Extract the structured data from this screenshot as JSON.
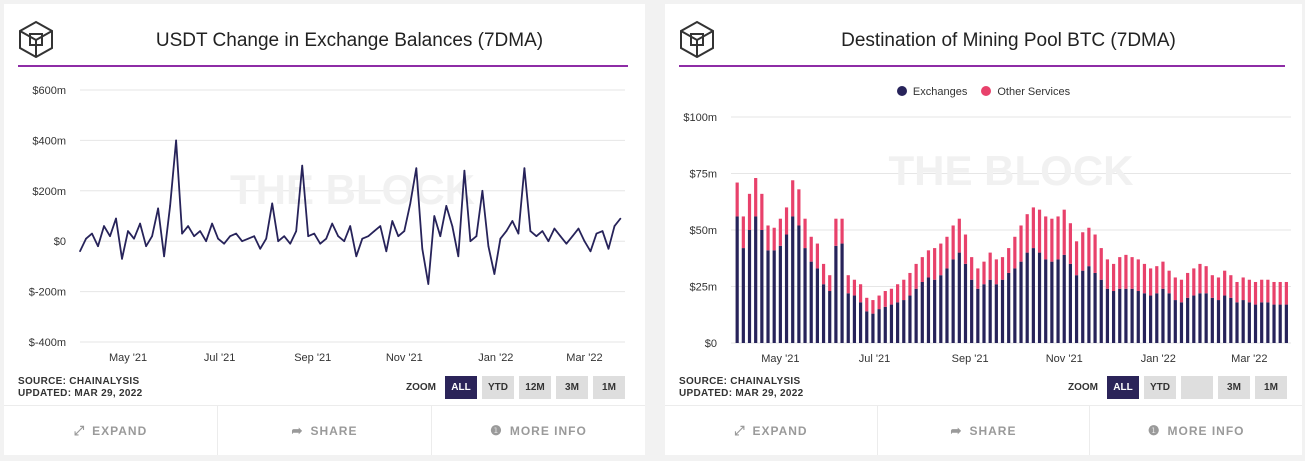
{
  "colors": {
    "accent": "#8e2ca6",
    "exchanges": "#27235a",
    "other_services": "#e8416b",
    "zoom_active": "#2b2459"
  },
  "watermark": "THE BLOCK",
  "cards": [
    {
      "title": "USDT Change in Exchange Balances (7DMA)",
      "source": "SOURCE: CHAINALYSIS",
      "updated": "UPDATED: MAR 29, 2022",
      "zoom_label": "ZOOM",
      "zoom_buttons": [
        "ALL",
        "YTD",
        "12M",
        "3M",
        "1M"
      ],
      "zoom_active": "ALL",
      "actions": [
        {
          "label": "EXPAND",
          "icon": "expand-icon"
        },
        {
          "label": "SHARE",
          "icon": "share-icon"
        },
        {
          "label": "MORE INFO",
          "icon": "info-icon"
        }
      ]
    },
    {
      "title": "Destination of Mining Pool BTC (7DMA)",
      "source": "SOURCE: CHAINALYSIS",
      "updated": "UPDATED: MAR 29, 2022",
      "zoom_label": "ZOOM",
      "zoom_buttons": [
        "ALL",
        "YTD",
        "",
        "3M",
        "1M"
      ],
      "zoom_active": "ALL",
      "actions": [
        {
          "label": "EXPAND",
          "icon": "expand-icon"
        },
        {
          "label": "SHARE",
          "icon": "share-icon"
        },
        {
          "label": "MORE INFO",
          "icon": "info-icon"
        }
      ]
    }
  ],
  "chart_data": [
    {
      "type": "line",
      "title": "USDT Change in Exchange Balances (7DMA)",
      "unit": "$m",
      "ylim": [
        -400,
        600
      ],
      "yticks": [
        600,
        400,
        200,
        0,
        -200,
        -400
      ],
      "ytick_labels": [
        "$600m",
        "$400m",
        "$200m",
        "$0",
        "$-200m",
        "$-400m"
      ],
      "xticks": [
        "2021-05-01",
        "2021-07-01",
        "2021-09-01",
        "2021-11-01",
        "2022-01-01",
        "2022-03-01"
      ],
      "xtick_labels": [
        "May '21",
        "Jul '21",
        "Sep '21",
        "Nov '21",
        "Jan '22",
        "Mar '22"
      ],
      "xlim": [
        "2021-03-30",
        "2022-03-28"
      ],
      "grid": true,
      "x": [
        "2021-03-30",
        "2021-04-03",
        "2021-04-07",
        "2021-04-11",
        "2021-04-15",
        "2021-04-19",
        "2021-04-23",
        "2021-04-27",
        "2021-05-01",
        "2021-05-05",
        "2021-05-09",
        "2021-05-13",
        "2021-05-17",
        "2021-05-21",
        "2021-05-25",
        "2021-05-29",
        "2021-06-02",
        "2021-06-06",
        "2021-06-10",
        "2021-06-14",
        "2021-06-18",
        "2021-06-22",
        "2021-06-26",
        "2021-06-30",
        "2021-07-04",
        "2021-07-08",
        "2021-07-12",
        "2021-07-16",
        "2021-07-20",
        "2021-07-24",
        "2021-07-28",
        "2021-08-01",
        "2021-08-05",
        "2021-08-09",
        "2021-08-13",
        "2021-08-17",
        "2021-08-21",
        "2021-08-25",
        "2021-08-29",
        "2021-09-02",
        "2021-09-06",
        "2021-09-10",
        "2021-09-14",
        "2021-09-18",
        "2021-09-22",
        "2021-09-26",
        "2021-09-30",
        "2021-10-04",
        "2021-10-08",
        "2021-10-12",
        "2021-10-16",
        "2021-10-20",
        "2021-10-24",
        "2021-10-28",
        "2021-11-01",
        "2021-11-05",
        "2021-11-09",
        "2021-11-13",
        "2021-11-17",
        "2021-11-21",
        "2021-11-25",
        "2021-11-29",
        "2021-12-03",
        "2021-12-07",
        "2021-12-11",
        "2021-12-15",
        "2021-12-19",
        "2021-12-23",
        "2021-12-27",
        "2021-12-31",
        "2022-01-04",
        "2022-01-08",
        "2022-01-12",
        "2022-01-16",
        "2022-01-20",
        "2022-01-24",
        "2022-01-28",
        "2022-02-01",
        "2022-02-05",
        "2022-02-09",
        "2022-02-13",
        "2022-02-17",
        "2022-02-21",
        "2022-02-25",
        "2022-03-01",
        "2022-03-05",
        "2022-03-09",
        "2022-03-13",
        "2022-03-17",
        "2022-03-21",
        "2022-03-25"
      ],
      "values": [
        -40,
        10,
        30,
        -20,
        60,
        20,
        90,
        -70,
        40,
        10,
        70,
        -20,
        20,
        130,
        -60,
        140,
        400,
        30,
        60,
        20,
        40,
        0,
        70,
        10,
        -10,
        20,
        30,
        0,
        10,
        20,
        -30,
        10,
        150,
        0,
        20,
        -10,
        40,
        300,
        20,
        30,
        -10,
        10,
        70,
        20,
        0,
        60,
        -60,
        10,
        20,
        40,
        60,
        -40,
        80,
        20,
        40,
        150,
        290,
        -30,
        -170,
        100,
        20,
        140,
        60,
        -60,
        280,
        0,
        20,
        200,
        -20,
        -130,
        10,
        40,
        80,
        30,
        290,
        40,
        20,
        40,
        0,
        50,
        20,
        -10,
        20,
        50,
        0,
        -40,
        30,
        40,
        -30,
        60,
        90
      ]
    },
    {
      "type": "bar",
      "stacked": true,
      "title": "Destination of Mining Pool BTC (7DMA)",
      "unit": "$m",
      "ylim": [
        0,
        100
      ],
      "yticks": [
        100,
        75,
        50,
        25,
        0
      ],
      "ytick_labels": [
        "$100m",
        "$75m",
        "$50m",
        "$25m",
        "$0"
      ],
      "xticks": [
        "2021-05-01",
        "2021-07-01",
        "2021-09-01",
        "2021-11-01",
        "2022-01-01",
        "2022-03-01"
      ],
      "xtick_labels": [
        "May '21",
        "Jul '21",
        "Sep '21",
        "Nov '21",
        "Jan '22",
        "Mar '22"
      ],
      "xlim": [
        "2021-03-30",
        "2022-03-28"
      ],
      "grid": true,
      "legend": "top-center",
      "x": [
        "2021-04-03",
        "2021-04-07",
        "2021-04-11",
        "2021-04-15",
        "2021-04-19",
        "2021-04-23",
        "2021-04-27",
        "2021-05-01",
        "2021-05-05",
        "2021-05-09",
        "2021-05-13",
        "2021-05-17",
        "2021-05-21",
        "2021-05-25",
        "2021-05-29",
        "2021-06-02",
        "2021-06-06",
        "2021-06-10",
        "2021-06-14",
        "2021-06-18",
        "2021-06-22",
        "2021-06-26",
        "2021-06-30",
        "2021-07-04",
        "2021-07-08",
        "2021-07-12",
        "2021-07-16",
        "2021-07-20",
        "2021-07-24",
        "2021-07-28",
        "2021-08-01",
        "2021-08-05",
        "2021-08-09",
        "2021-08-13",
        "2021-08-17",
        "2021-08-21",
        "2021-08-25",
        "2021-08-29",
        "2021-09-02",
        "2021-09-06",
        "2021-09-10",
        "2021-09-14",
        "2021-09-18",
        "2021-09-22",
        "2021-09-26",
        "2021-09-30",
        "2021-10-04",
        "2021-10-08",
        "2021-10-12",
        "2021-10-16",
        "2021-10-20",
        "2021-10-24",
        "2021-10-28",
        "2021-11-01",
        "2021-11-05",
        "2021-11-09",
        "2021-11-13",
        "2021-11-17",
        "2021-11-21",
        "2021-11-25",
        "2021-11-29",
        "2021-12-03",
        "2021-12-07",
        "2021-12-11",
        "2021-12-15",
        "2021-12-19",
        "2021-12-23",
        "2021-12-27",
        "2021-12-31",
        "2022-01-04",
        "2022-01-08",
        "2022-01-12",
        "2022-01-16",
        "2022-01-20",
        "2022-01-24",
        "2022-01-28",
        "2022-02-01",
        "2022-02-05",
        "2022-02-09",
        "2022-02-13",
        "2022-02-17",
        "2022-02-21",
        "2022-02-25",
        "2022-03-01",
        "2022-03-05",
        "2022-03-09",
        "2022-03-13",
        "2022-03-17",
        "2022-03-21",
        "2022-03-25"
      ],
      "series": [
        {
          "name": "Exchanges",
          "values": [
            56,
            42,
            50,
            56,
            50,
            41,
            41,
            43,
            48,
            56,
            52,
            42,
            36,
            33,
            26,
            23,
            43,
            44,
            22,
            21,
            18,
            14,
            13,
            15,
            16,
            17,
            18,
            19,
            21,
            24,
            27,
            29,
            28,
            30,
            33,
            37,
            40,
            35,
            28,
            24,
            26,
            28,
            26,
            28,
            31,
            33,
            36,
            40,
            42,
            40,
            37,
            36,
            37,
            39,
            35,
            30,
            32,
            34,
            31,
            28,
            24,
            23,
            24,
            24,
            24,
            23,
            22,
            21,
            22,
            24,
            22,
            19,
            18,
            20,
            21,
            22,
            22,
            20,
            19,
            21,
            20,
            18,
            19,
            18,
            17,
            18,
            18,
            17,
            17,
            17
          ]
        },
        {
          "name": "Other Services",
          "values": [
            15,
            14,
            16,
            17,
            16,
            11,
            10,
            12,
            12,
            16,
            16,
            13,
            11,
            11,
            9,
            7,
            12,
            11,
            8,
            7,
            8,
            6,
            6,
            6,
            7,
            7,
            8,
            9,
            10,
            11,
            11,
            12,
            14,
            14,
            14,
            15,
            15,
            13,
            10,
            9,
            10,
            12,
            11,
            10,
            11,
            14,
            16,
            17,
            18,
            19,
            19,
            19,
            19,
            20,
            18,
            15,
            17,
            17,
            17,
            14,
            13,
            12,
            14,
            15,
            14,
            14,
            13,
            12,
            12,
            12,
            10,
            10,
            10,
            11,
            12,
            13,
            12,
            10,
            10,
            11,
            10,
            9,
            10,
            10,
            10,
            10,
            10,
            10,
            10,
            10
          ]
        }
      ]
    }
  ]
}
